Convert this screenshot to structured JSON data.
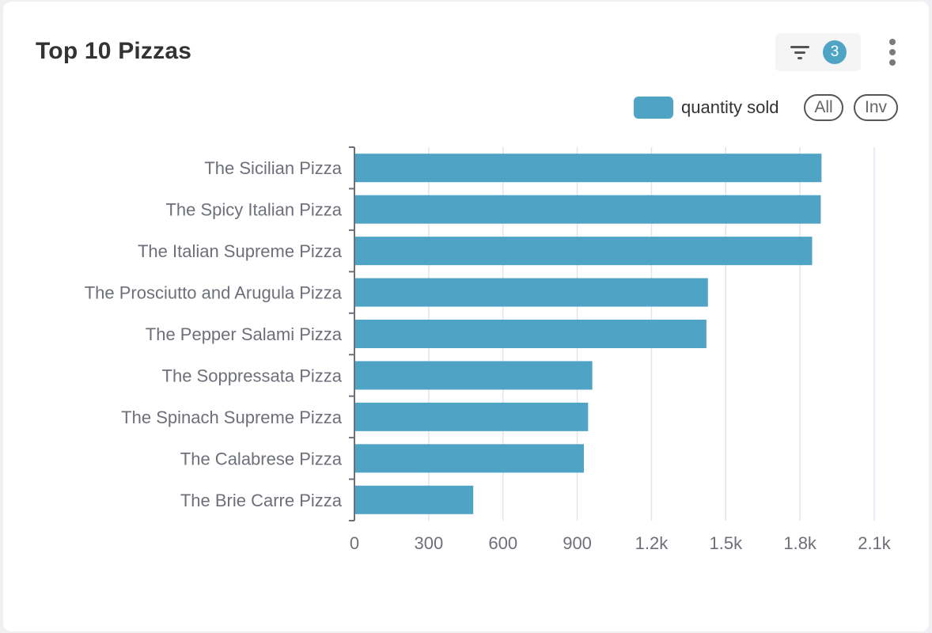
{
  "card": {
    "title": "Top 10 Pizzas",
    "filter_count": "3",
    "filter_icon": "filter-icon",
    "more_icon": "more-vertical-icon"
  },
  "legend": {
    "series_label": "quantity sold",
    "all_label": "All",
    "inv_label": "Inv",
    "color": "#4fa4c5"
  },
  "chart_data": {
    "type": "bar",
    "orientation": "horizontal",
    "title": "Top 10 Pizzas",
    "categories": [
      "The Sicilian Pizza",
      "The Spicy Italian Pizza",
      "The Italian Supreme Pizza",
      "The Prosciutto and Arugula Pizza",
      "The Pepper Salami Pizza",
      "The Soppressata Pizza",
      "The Spinach Supreme Pizza",
      "The Calabrese Pizza",
      "The Brie Carre Pizza"
    ],
    "series": [
      {
        "name": "quantity sold",
        "color": "#4fa4c5",
        "values": [
          1887,
          1884,
          1849,
          1428,
          1422,
          961,
          944,
          927,
          480
        ]
      }
    ],
    "xlim": [
      0,
      2100
    ],
    "xticks": [
      0,
      300,
      600,
      900,
      1200,
      1500,
      1800,
      2100
    ],
    "xtick_labels": [
      "0",
      "300",
      "600",
      "900",
      "1.2k",
      "1.5k",
      "1.8k",
      "2.1k"
    ],
    "grid": true,
    "legend_position": "top-right"
  }
}
